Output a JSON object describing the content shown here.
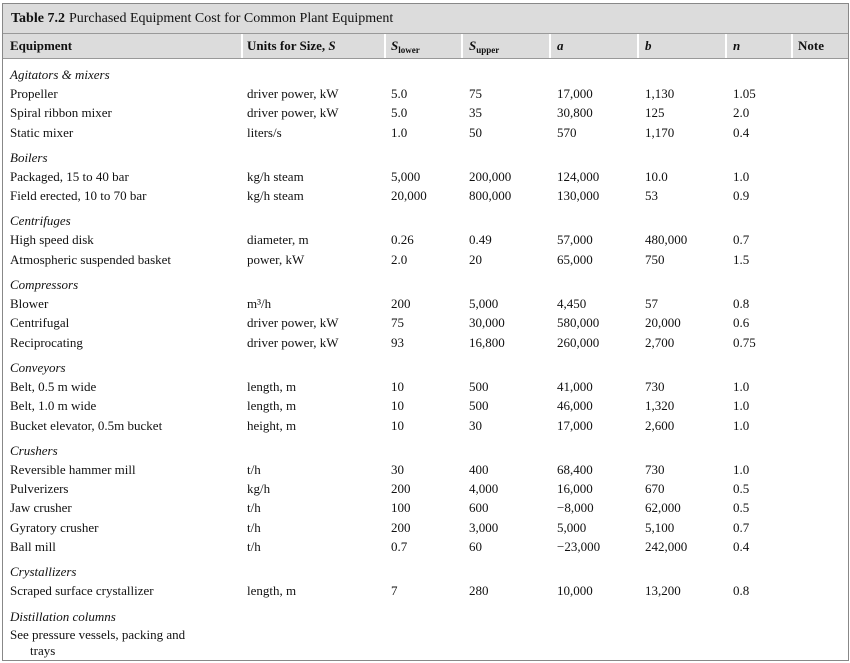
{
  "title": {
    "label": "Table 7.2",
    "text": "Purchased Equipment Cost for Common Plant Equipment"
  },
  "header": [
    {
      "text": "Equipment"
    },
    {
      "text": "Units for Size, ",
      "var": "S"
    },
    {
      "var": "S",
      "sub": "lower"
    },
    {
      "var": "S",
      "sub": "upper"
    },
    {
      "var": "a"
    },
    {
      "var": "b"
    },
    {
      "var": "n"
    },
    {
      "text": "Note"
    }
  ],
  "sections": [
    {
      "name": "Agitators & mixers",
      "rows": [
        [
          "Propeller",
          "driver power, kW",
          "5.0",
          "75",
          "17,000",
          "1,130",
          "1.05"
        ],
        [
          "Spiral ribbon mixer",
          "driver power, kW",
          "5.0",
          "35",
          "30,800",
          "125",
          "2.0"
        ],
        [
          "Static mixer",
          "liters/s",
          "1.0",
          "50",
          "570",
          "1,170",
          "0.4"
        ]
      ]
    },
    {
      "name": "Boilers",
      "rows": [
        [
          "Packaged, 15 to 40 bar",
          "kg/h steam",
          "5,000",
          "200,000",
          "124,000",
          "10.0",
          "1.0"
        ],
        [
          "Field erected, 10 to 70 bar",
          "kg/h steam",
          "20,000",
          "800,000",
          "130,000",
          "53",
          "0.9"
        ]
      ]
    },
    {
      "name": "Centrifuges",
      "rows": [
        [
          "High speed disk",
          "diameter, m",
          "0.26",
          "0.49",
          "57,000",
          "480,000",
          "0.7"
        ],
        [
          "Atmospheric suspended basket",
          "power, kW",
          "2.0",
          "20",
          "65,000",
          "750",
          "1.5"
        ]
      ]
    },
    {
      "name": "Compressors",
      "rows": [
        [
          "Blower",
          "m³/h",
          "200",
          "5,000",
          "4,450",
          "57",
          "0.8"
        ],
        [
          "Centrifugal",
          "driver power, kW",
          "75",
          "30,000",
          "580,000",
          "20,000",
          "0.6"
        ],
        [
          "Reciprocating",
          "driver power, kW",
          "93",
          "16,800",
          "260,000",
          "2,700",
          "0.75"
        ]
      ]
    },
    {
      "name": "Conveyors",
      "rows": [
        [
          "Belt, 0.5 m wide",
          "length, m",
          "10",
          "500",
          "41,000",
          "730",
          "1.0"
        ],
        [
          "Belt, 1.0 m wide",
          "length, m",
          "10",
          "500",
          "46,000",
          "1,320",
          "1.0"
        ],
        [
          "Bucket elevator, 0.5m bucket",
          "height, m",
          "10",
          "30",
          "17,000",
          "2,600",
          "1.0"
        ]
      ]
    },
    {
      "name": "Crushers",
      "rows": [
        [
          "Reversible hammer mill",
          "t/h",
          "30",
          "400",
          "68,400",
          "730",
          "1.0"
        ],
        [
          "Pulverizers",
          "kg/h",
          "200",
          "4,000",
          "16,000",
          "670",
          "0.5"
        ],
        [
          "Jaw crusher",
          "t/h",
          "100",
          "600",
          "−8,000",
          "62,000",
          "0.5"
        ],
        [
          "Gyratory crusher",
          "t/h",
          "200",
          "3,000",
          "5,000",
          "5,100",
          "0.7"
        ],
        [
          "Ball mill",
          "t/h",
          "0.7",
          "60",
          "−23,000",
          "242,000",
          "0.4"
        ]
      ]
    },
    {
      "name": "Crystallizers",
      "rows": [
        [
          "Scraped surface crystallizer",
          "length, m",
          "7",
          "280",
          "10,000",
          "13,200",
          "0.8"
        ]
      ]
    },
    {
      "name": "Distillation columns",
      "rows": [
        [
          "See pressure vessels, packing and trays"
        ]
      ]
    }
  ]
}
